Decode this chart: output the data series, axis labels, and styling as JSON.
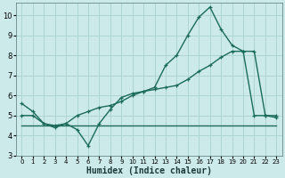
{
  "xlabel": "Humidex (Indice chaleur)",
  "bg_color": "#cdeaea",
  "grid_color": "#afd4d4",
  "line_color": "#1a6b5a",
  "xlim": [
    -0.5,
    23.5
  ],
  "ylim": [
    3,
    10.6
  ],
  "xticks": [
    0,
    1,
    2,
    3,
    4,
    5,
    6,
    7,
    8,
    9,
    10,
    11,
    12,
    13,
    14,
    15,
    16,
    17,
    18,
    19,
    20,
    21,
    22,
    23
  ],
  "yticks": [
    3,
    4,
    5,
    6,
    7,
    8,
    9,
    10
  ],
  "line1_x": [
    0,
    1,
    2,
    3,
    4,
    5,
    6,
    7,
    8,
    9,
    10,
    11,
    12,
    13,
    14,
    15,
    16,
    17,
    18,
    19,
    20,
    21,
    22,
    23
  ],
  "line1_y": [
    5.6,
    5.2,
    4.6,
    4.4,
    4.6,
    4.3,
    3.5,
    4.6,
    5.3,
    5.9,
    6.1,
    6.2,
    6.4,
    7.5,
    8.0,
    9.0,
    9.9,
    10.4,
    9.3,
    8.5,
    8.2,
    5.0,
    5.0,
    4.9
  ],
  "line2_x": [
    0,
    1,
    2,
    3,
    4,
    5,
    6,
    7,
    8,
    9,
    10,
    11,
    12,
    13,
    14,
    15,
    16,
    17,
    18,
    19,
    20,
    21,
    22,
    23
  ],
  "line2_y": [
    4.5,
    4.5,
    4.5,
    4.5,
    4.5,
    4.5,
    4.5,
    4.5,
    4.5,
    4.5,
    4.5,
    4.5,
    4.5,
    4.5,
    4.5,
    4.5,
    4.5,
    4.5,
    4.5,
    4.5,
    4.5,
    4.5,
    4.5,
    4.5
  ],
  "line3_x": [
    0,
    1,
    2,
    3,
    4,
    5,
    6,
    7,
    8,
    9,
    10,
    11,
    12,
    13,
    14,
    15,
    16,
    17,
    18,
    19,
    20,
    21,
    22,
    23
  ],
  "line3_y": [
    5.0,
    5.0,
    4.6,
    4.5,
    4.6,
    5.0,
    5.2,
    5.4,
    5.5,
    5.7,
    6.0,
    6.2,
    6.3,
    6.4,
    6.5,
    6.8,
    7.2,
    7.5,
    7.9,
    8.2,
    8.2,
    8.2,
    5.0,
    5.0
  ],
  "marker_size": 3,
  "line_width": 1.0,
  "font_size_label": 7,
  "font_size_tick_x": 5,
  "font_size_tick_y": 6
}
